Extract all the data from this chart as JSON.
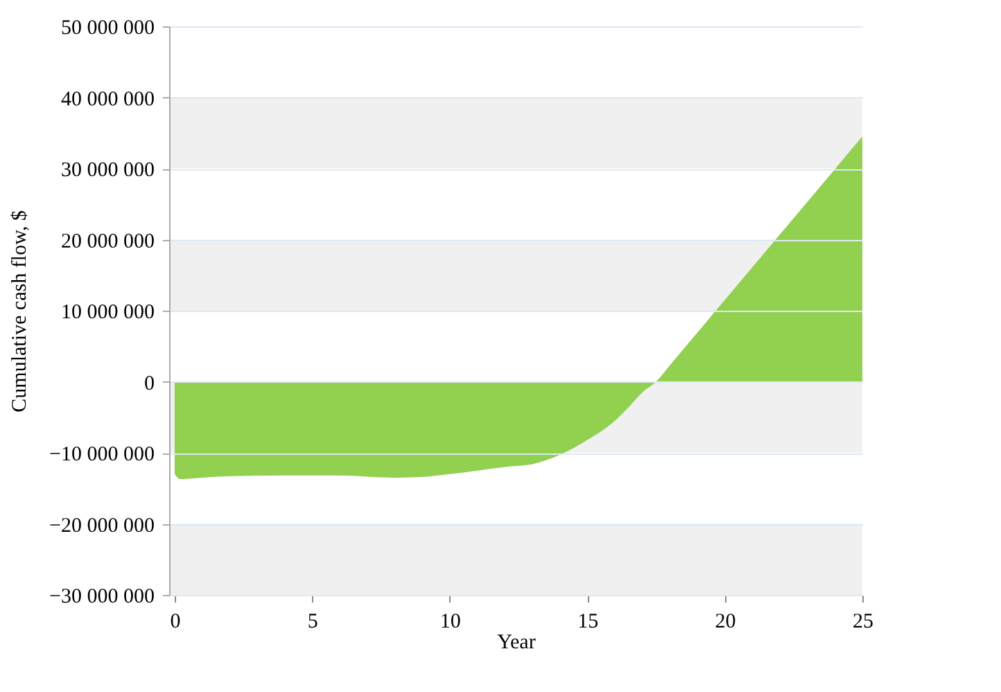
{
  "chart_data": {
    "type": "area",
    "xlabel": "Year",
    "ylabel": "Cumulative cash flow, $",
    "x": [
      0,
      0.2,
      1,
      2,
      4,
      6,
      8,
      9,
      10,
      11,
      12,
      13,
      14,
      15,
      16,
      16.5,
      17,
      17.5,
      18,
      19,
      20,
      22,
      24,
      25
    ],
    "series": [
      {
        "color": "#92d050",
        "values": [
          -13000000,
          -13700000,
          -13500000,
          -13300000,
          -13200000,
          -13200000,
          -13500000,
          -13400000,
          -13000000,
          -12500000,
          -12000000,
          -11600000,
          -10300000,
          -8200000,
          -5500000,
          -3600000,
          -1500000,
          0,
          2300000,
          6900000,
          11500000,
          20700000,
          29900000,
          34500000
        ]
      }
    ],
    "xlim": [
      -0.2,
      25
    ],
    "xticks": [
      0,
      5,
      10,
      15,
      20,
      25
    ],
    "ylim": [
      -30000000,
      50000000
    ],
    "yticks": [
      {
        "value": -30000000,
        "label": "−30 000 000"
      },
      {
        "value": -20000000,
        "label": "−20 000 000"
      },
      {
        "value": -10000000,
        "label": "−10 000 000"
      },
      {
        "value": 0,
        "label": "0"
      },
      {
        "value": 10000000,
        "label": "10 000 000"
      },
      {
        "value": 20000000,
        "label": "20 000 000"
      },
      {
        "value": 30000000,
        "label": "30 000 000"
      },
      {
        "value": 40000000,
        "label": "40 000 000"
      },
      {
        "value": 50000000,
        "label": "50 000 000"
      }
    ],
    "grid": "y",
    "bands": [
      {
        "axis": "y",
        "from": -30000000,
        "to": -20000000,
        "color": "#f0f0f0"
      },
      {
        "axis": "y",
        "from": -10000000,
        "to": 0,
        "color": "#f0f0f0"
      },
      {
        "axis": "y",
        "from": 10000000,
        "to": 20000000,
        "color": "#f0f0f0"
      },
      {
        "axis": "y",
        "from": 30000000,
        "to": 40000000,
        "color": "#f0f0f0"
      }
    ]
  }
}
